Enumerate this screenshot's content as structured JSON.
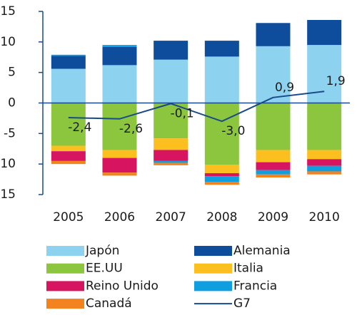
{
  "chart_data": {
    "type": "bar",
    "stacked": true,
    "categories": [
      "2005",
      "2006",
      "2007",
      "2008",
      "2009",
      "2010"
    ],
    "series": [
      {
        "name": "Japón",
        "color": "#8dd3f0",
        "values": [
          5.6,
          6.2,
          7.1,
          7.6,
          9.3,
          9.5
        ]
      },
      {
        "name": "Alemania",
        "color": "#0e4d9c",
        "values": [
          2.1,
          3.0,
          3.1,
          2.6,
          3.8,
          4.1
        ]
      },
      {
        "name": "EE.UU",
        "color": "#8cc63f",
        "values": [
          -7.0,
          -7.7,
          -5.8,
          -10.1,
          -7.7,
          -7.7
        ]
      },
      {
        "name": "Italia",
        "color": "#fbbf1f",
        "values": [
          -0.9,
          -1.3,
          -1.9,
          -1.4,
          -2.0,
          -1.5
        ]
      },
      {
        "name": "Reino Unido",
        "color": "#d6145f",
        "values": [
          -1.6,
          -2.4,
          -1.8,
          -0.5,
          -1.3,
          -1.1
        ]
      },
      {
        "name": "Francia",
        "color": "#0f9ee0",
        "values": [
          0.2,
          0.3,
          -0.3,
          -0.9,
          -0.7,
          -0.9
        ]
      },
      {
        "name": "Canadá",
        "color": "#f2831f",
        "values": [
          -0.5,
          -0.5,
          -0.4,
          -0.5,
          -0.5,
          -0.5
        ]
      },
      {
        "name": "G7",
        "color": "#1a4a8a",
        "type": "line",
        "values": [
          -2.4,
          -2.6,
          -0.1,
          -3.0,
          0.9,
          1.9
        ],
        "value_labels": [
          "-2,4",
          "-2,6",
          "-0,1",
          "-3,0",
          "0,9",
          "1,9"
        ]
      }
    ],
    "ylim": [
      -15,
      15
    ],
    "yticks": [
      -15,
      -10,
      -5,
      0,
      5,
      10,
      15
    ],
    "grid": false
  }
}
